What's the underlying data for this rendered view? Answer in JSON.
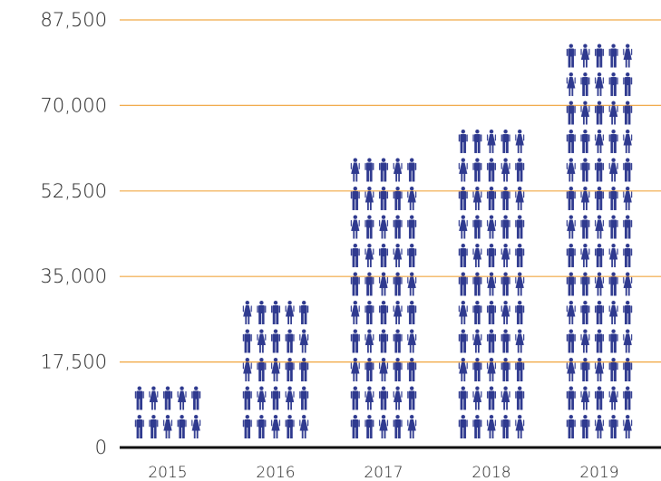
{
  "chart_data": {
    "type": "bar",
    "style": "pictograph",
    "categories": [
      "2015",
      "2016",
      "2017",
      "2018",
      "2019"
    ],
    "values": [
      11000,
      28000,
      58000,
      63500,
      80500
    ],
    "icon_rows": [
      2,
      5,
      10,
      11,
      14
    ],
    "icon_columns": 5,
    "icon_unit_value": 5800,
    "ylim": [
      0,
      87500
    ],
    "y_ticks": [
      "0",
      "17,500",
      "35,000",
      "52,500",
      "70,000",
      "87,500"
    ],
    "y_tick_values": [
      0,
      17500,
      35000,
      52500,
      70000,
      87500
    ],
    "grid": true,
    "colors": {
      "icon": "#2f3a8f",
      "gridline": "#f0a640",
      "baseline": "#111111",
      "text": "#222222"
    },
    "icon_names": [
      "man-icon",
      "woman-icon"
    ]
  }
}
